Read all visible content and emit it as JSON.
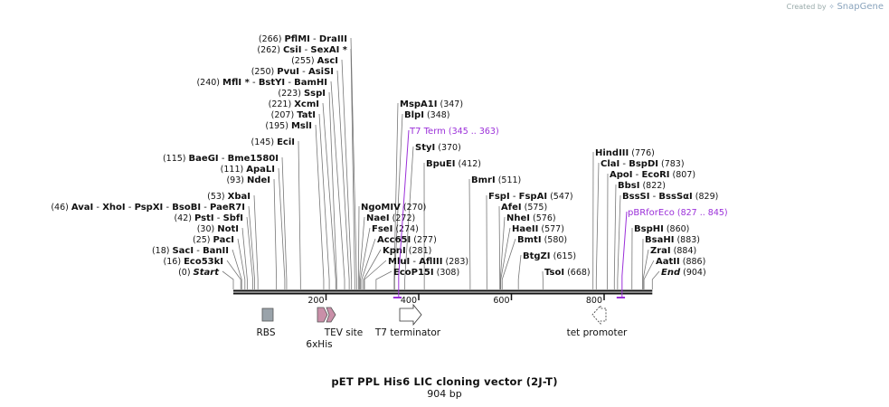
{
  "brand": {
    "prefix": "Created by",
    "name": "SnapGene"
  },
  "plasmid": {
    "name": "pET PPL His6 LIC cloning vector (2J-T)",
    "length_label": "904 bp",
    "length": 904
  },
  "colors": {
    "feature_purple": "#9b30d9",
    "rbs": "#9aa3aa",
    "his": "#c98fa8",
    "backbone": "#111111"
  },
  "ruler": {
    "ticks": [
      {
        "label": "200",
        "bp": 200
      },
      {
        "label": "400",
        "bp": 400
      },
      {
        "label": "600",
        "bp": 600
      },
      {
        "label": "800",
        "bp": 800
      }
    ]
  },
  "left_sites": [
    {
      "pos": "(266)",
      "names": [
        "PflMI",
        "DraIII"
      ],
      "bp": 266
    },
    {
      "pos": "(262)",
      "names": [
        "CsiI",
        "SexAI *"
      ],
      "bp": 262
    },
    {
      "pos": "(255)",
      "names": [
        "AscI"
      ],
      "bp": 255
    },
    {
      "pos": "(250)",
      "names": [
        "PvuI",
        "AsiSI"
      ],
      "bp": 250
    },
    {
      "pos": "(240)",
      "names": [
        "MflI *",
        "BstYI",
        "BamHI"
      ],
      "bp": 240
    },
    {
      "pos": "(223)",
      "names": [
        "SspI"
      ],
      "bp": 223
    },
    {
      "pos": "(221)",
      "names": [
        "XcmI"
      ],
      "bp": 221
    },
    {
      "pos": "(207)",
      "names": [
        "TatI"
      ],
      "bp": 207
    },
    {
      "pos": "(195)",
      "names": [
        "MslI"
      ],
      "bp": 195
    },
    {
      "pos": "(145)",
      "names": [
        "EciI"
      ],
      "bp": 145
    },
    {
      "pos": "(115)",
      "names": [
        "BaeGI",
        "Bme1580I"
      ],
      "bp": 115
    },
    {
      "pos": "(111)",
      "names": [
        "ApaLI"
      ],
      "bp": 111
    },
    {
      "pos": "(93)",
      "names": [
        "NdeI"
      ],
      "bp": 93
    },
    {
      "pos": "(53)",
      "names": [
        "XbaI"
      ],
      "bp": 53
    },
    {
      "pos": "(46)",
      "names": [
        "AvaI",
        "XhoI",
        "PspXI",
        "BsoBI",
        "PaeR7I"
      ],
      "bp": 46
    },
    {
      "pos": "(42)",
      "names": [
        "PstI",
        "SbfI"
      ],
      "bp": 42
    },
    {
      "pos": "(30)",
      "names": [
        "NotI"
      ],
      "bp": 30
    },
    {
      "pos": "(25)",
      "names": [
        "PacI"
      ],
      "bp": 25
    },
    {
      "pos": "(18)",
      "names": [
        "SacI",
        "BanII"
      ],
      "bp": 18
    },
    {
      "pos": "(16)",
      "names": [
        "Eco53kI"
      ],
      "bp": 16
    },
    {
      "pos": "(0)",
      "names": [
        "Start"
      ],
      "bp": 0,
      "italic": true
    }
  ],
  "right_sites": [
    {
      "names": [
        "MspA1I"
      ],
      "pos": "(347)",
      "bp": 347
    },
    {
      "names": [
        "BlpI"
      ],
      "pos": "(348)",
      "bp": 348
    },
    {
      "names": [
        "StyI"
      ],
      "pos": "(370)",
      "bp": 370
    },
    {
      "names": [
        "BpuEI"
      ],
      "pos": "(412)",
      "bp": 412
    },
    {
      "names": [
        "NgoMIV"
      ],
      "pos": "(270)",
      "bp": 270
    },
    {
      "names": [
        "NaeI"
      ],
      "pos": "(272)",
      "bp": 272
    },
    {
      "names": [
        "FseI"
      ],
      "pos": "(274)",
      "bp": 274
    },
    {
      "names": [
        "Acc65I"
      ],
      "pos": "(277)",
      "bp": 277
    },
    {
      "names": [
        "KpnI"
      ],
      "pos": "(281)",
      "bp": 281
    },
    {
      "names": [
        "MluI",
        "AflIII"
      ],
      "pos": "(283)",
      "bp": 283
    },
    {
      "names": [
        "EcoP15I"
      ],
      "pos": "(308)",
      "bp": 308
    },
    {
      "names": [
        "BmrI"
      ],
      "pos": "(511)",
      "bp": 511
    },
    {
      "names": [
        "FspI",
        "FspAI"
      ],
      "pos": "(547)",
      "bp": 547
    },
    {
      "names": [
        "AfeI"
      ],
      "pos": "(575)",
      "bp": 575
    },
    {
      "names": [
        "NheI"
      ],
      "pos": "(576)",
      "bp": 576
    },
    {
      "names": [
        "HaeII"
      ],
      "pos": "(577)",
      "bp": 577
    },
    {
      "names": [
        "BmtI"
      ],
      "pos": "(580)",
      "bp": 580
    },
    {
      "names": [
        "BtgZI"
      ],
      "pos": "(615)",
      "bp": 615
    },
    {
      "names": [
        "TsoI"
      ],
      "pos": "(668)",
      "bp": 668
    },
    {
      "names": [
        "HindIII"
      ],
      "pos": "(776)",
      "bp": 776
    },
    {
      "names": [
        "ClaI",
        "BspDI"
      ],
      "pos": "(783)",
      "bp": 783
    },
    {
      "names": [
        "ApoI",
        "EcoRI"
      ],
      "pos": "(807)",
      "bp": 807
    },
    {
      "names": [
        "BbsI"
      ],
      "pos": "(822)",
      "bp": 822
    },
    {
      "names": [
        "BssSI",
        "BssSαI"
      ],
      "pos": "(829)",
      "bp": 829
    },
    {
      "names": [
        "BspHI"
      ],
      "pos": "(860)",
      "bp": 860
    },
    {
      "names": [
        "BsaHI"
      ],
      "pos": "(883)",
      "bp": 883
    },
    {
      "names": [
        "ZraI"
      ],
      "pos": "(884)",
      "bp": 884
    },
    {
      "names": [
        "AatII"
      ],
      "pos": "(886)",
      "bp": 886
    },
    {
      "names": [
        "End"
      ],
      "pos": "(904)",
      "bp": 904,
      "italic": true
    }
  ],
  "primers": [
    {
      "name": "T7 Term",
      "range": "(345 .. 363)",
      "start": 345,
      "end": 363
    },
    {
      "name": "pBRforEco",
      "range": "(827 .. 845)",
      "start": 827,
      "end": 845
    }
  ],
  "features": [
    {
      "name": "RBS",
      "start": 60,
      "end": 85
    },
    {
      "name": "6xHis",
      "start": 185,
      "end": 200
    },
    {
      "name": "TEV site",
      "start": 200,
      "end": 215
    },
    {
      "name": "T7 terminator",
      "start": 376,
      "end": 400
    },
    {
      "name": "tet promoter",
      "start": 785,
      "end": 805
    }
  ]
}
